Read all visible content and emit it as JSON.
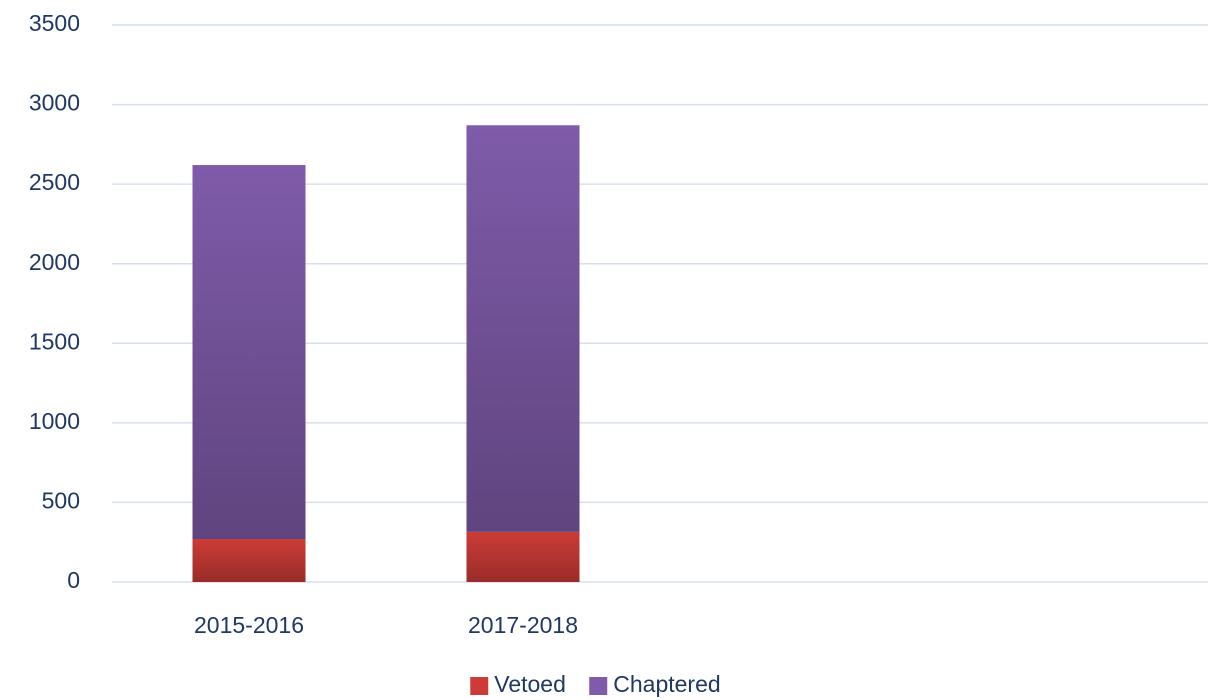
{
  "chart_data": {
    "type": "stacked_bar",
    "categories": [
      "2015-2016",
      "2017-2018",
      null,
      null
    ],
    "series": [
      {
        "name": "Vetoed",
        "color": "#cc3b36",
        "values": [
          270,
          315,
          null,
          null
        ]
      },
      {
        "name": "Chaptered",
        "color": "#7f5ba9",
        "values": [
          2350,
          2555,
          null,
          null
        ]
      }
    ],
    "ylim": [
      0,
      3500
    ],
    "yticks": [
      0,
      500,
      1000,
      1500,
      2000,
      2500,
      3000,
      3500
    ],
    "grid": true,
    "legend": "bottom"
  }
}
